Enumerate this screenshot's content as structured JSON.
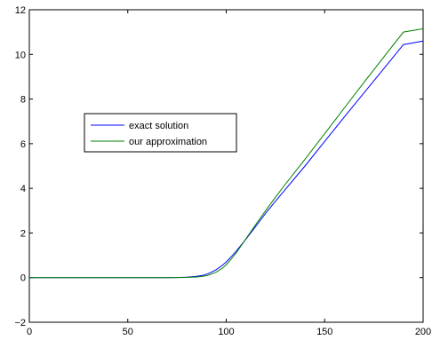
{
  "chart_data": {
    "type": "line",
    "title": "",
    "xlabel": "",
    "ylabel": "",
    "xlim": [
      0,
      200
    ],
    "ylim": [
      -2,
      12
    ],
    "xticks": [
      "0",
      "50",
      "100",
      "150",
      "200"
    ],
    "yticks": [
      "−2",
      "0",
      "2",
      "4",
      "6",
      "8",
      "10",
      "12"
    ],
    "grid": false,
    "legend_position": "center-left",
    "series": [
      {
        "name": "exact solution",
        "color": "#0000ff",
        "x": [
          0,
          50,
          70,
          75,
          80,
          85,
          88,
          90,
          92,
          95,
          98,
          100,
          103,
          105,
          108,
          110,
          115,
          120,
          125,
          130,
          140,
          150,
          160,
          170,
          180,
          190,
          200
        ],
        "y": [
          0,
          0,
          0,
          0.005,
          0.02,
          0.06,
          0.1,
          0.15,
          0.22,
          0.36,
          0.55,
          0.7,
          0.98,
          1.18,
          1.5,
          1.72,
          2.3,
          2.88,
          3.42,
          3.95,
          5.0,
          6.1,
          7.2,
          8.28,
          9.36,
          10.44,
          10.6
        ]
      },
      {
        "name": "our approximation",
        "color": "#008000",
        "x": [
          0,
          50,
          70,
          75,
          80,
          85,
          88,
          90,
          92,
          95,
          98,
          100,
          103,
          105,
          108,
          110,
          115,
          120,
          125,
          130,
          140,
          150,
          160,
          170,
          180,
          190,
          200
        ],
        "y": [
          0,
          0,
          0,
          0.002,
          0.01,
          0.03,
          0.06,
          0.09,
          0.14,
          0.25,
          0.42,
          0.57,
          0.88,
          1.1,
          1.48,
          1.74,
          2.38,
          3.0,
          3.6,
          4.18,
          5.3,
          6.45,
          7.6,
          8.75,
          9.88,
          11.0,
          11.15
        ]
      }
    ]
  }
}
